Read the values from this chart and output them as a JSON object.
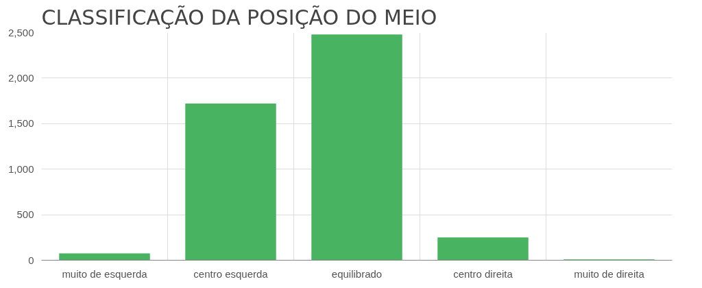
{
  "chart_data": {
    "type": "bar",
    "title": "CLASSIFICAÇÃO DA POSIÇÃO DO MEIO",
    "categories": [
      "muito de esquerda",
      "centro esquerda",
      "equilibrado",
      "centro direita",
      "muito de direita"
    ],
    "values": [
      75,
      1720,
      2480,
      250,
      10
    ],
    "color": "#48b461",
    "ylim": [
      0,
      2500
    ],
    "yticks": [
      0,
      {
        "value": 500,
        "label": "500"
      },
      {
        "value": 1000,
        "label": "1,000"
      },
      {
        "value": 1500,
        "label": "1,500"
      },
      {
        "value": 2000,
        "label": "2,000"
      },
      {
        "value": 2500,
        "label": "2,500"
      }
    ],
    "grid": true
  }
}
